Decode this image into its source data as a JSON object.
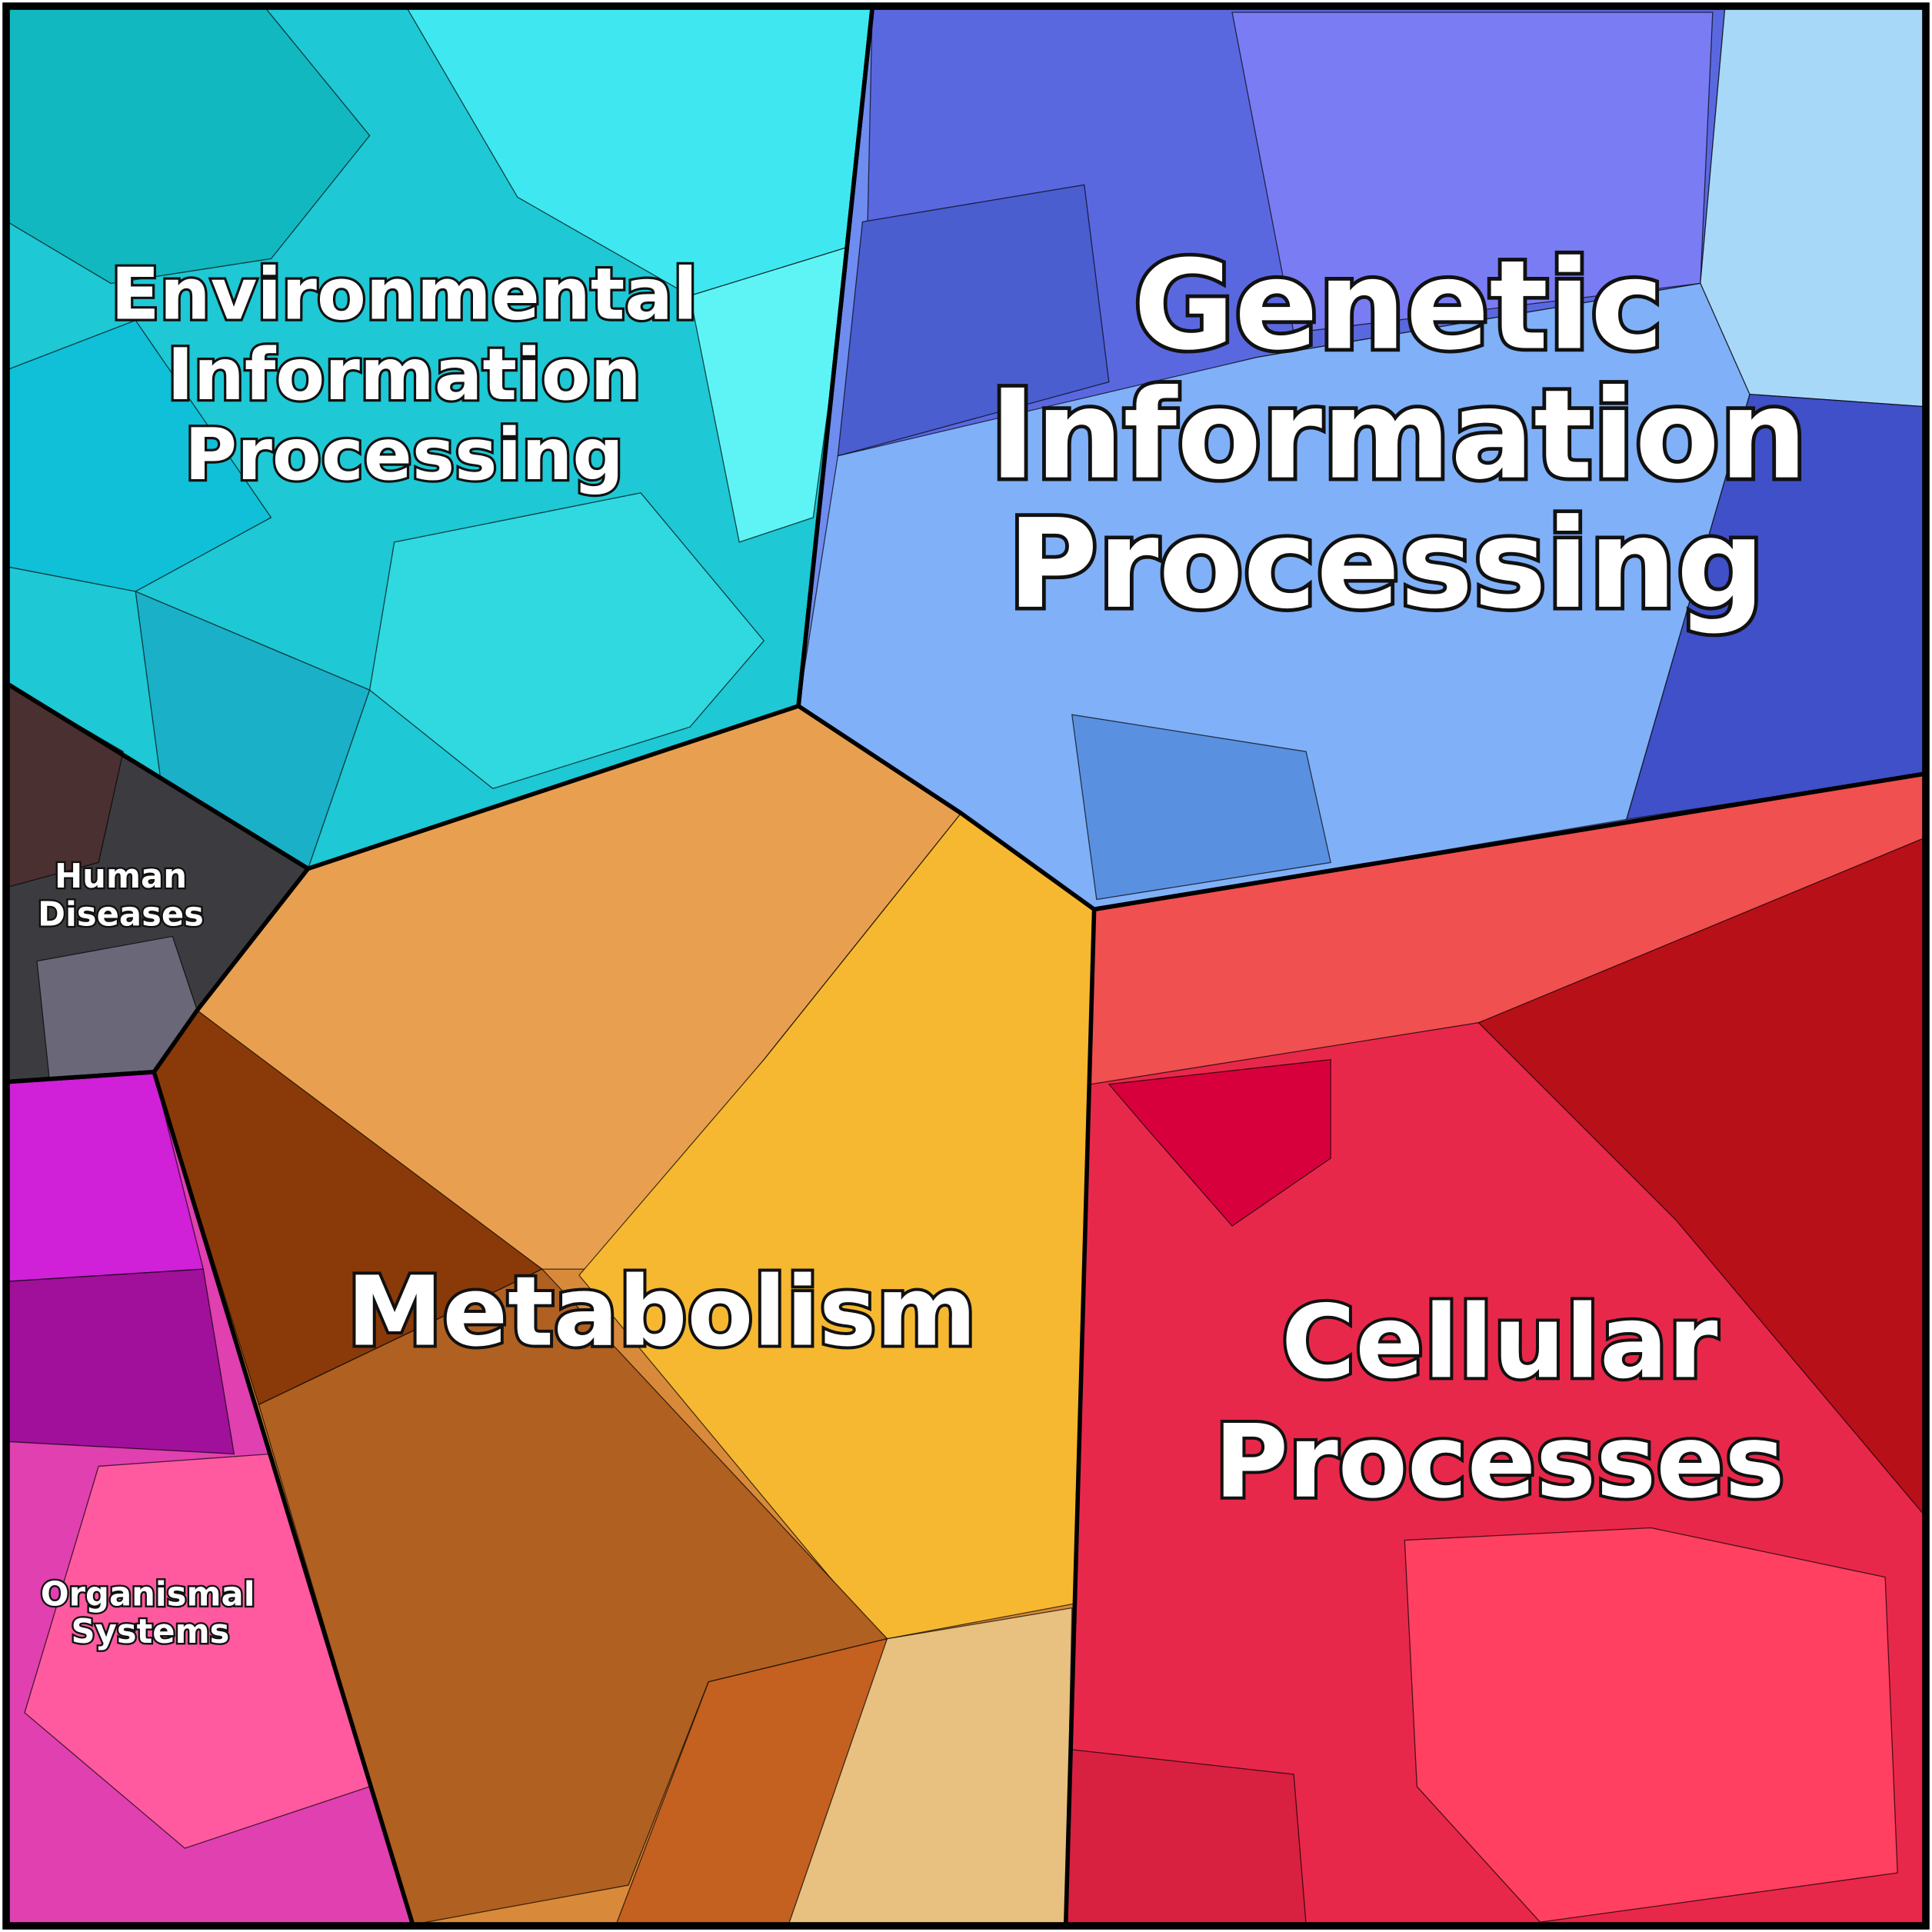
{
  "regions": [
    {
      "lines": [
        "Environmental",
        "Information",
        "Processing"
      ]
    },
    {
      "lines": [
        "Genetic",
        "Information",
        "Processing"
      ]
    },
    {
      "lines": [
        "Human",
        "Diseases"
      ]
    },
    {
      "lines": [
        "Metabolism"
      ]
    },
    {
      "lines": [
        "Cellular",
        "Processes"
      ]
    },
    {
      "lines": [
        "Organismal",
        "Systems"
      ]
    }
  ]
}
